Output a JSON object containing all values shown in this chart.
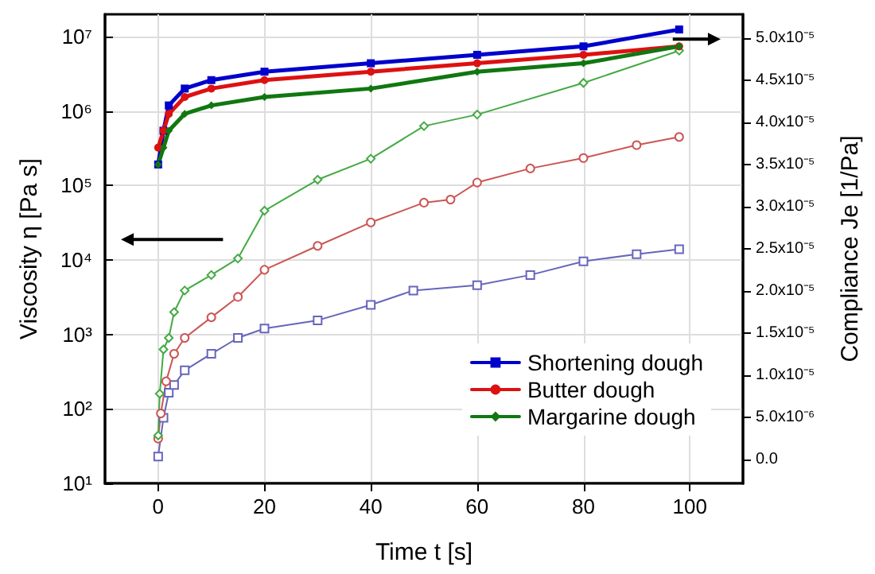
{
  "chart_data": {
    "type": "line",
    "xlabel": "Time t [s]",
    "ylabel": "Viscosity η [Pa s]",
    "y2label": "Compliance Je [1/Pa]",
    "log": "y",
    "grid": true,
    "legend": "bottom right",
    "xlim": [
      -10,
      110
    ],
    "xticks": [
      0,
      20,
      40,
      60,
      80,
      100
    ],
    "ylim": [
      10,
      20000000
    ],
    "yticks": [
      {
        "value": 10,
        "label": "10¹"
      },
      {
        "value": 100,
        "label": "10²"
      },
      {
        "value": 1000,
        "label": "10³"
      },
      {
        "value": 10000,
        "label": "10⁴"
      },
      {
        "value": 100000,
        "label": "10⁵"
      },
      {
        "value": 1000000,
        "label": "10⁶"
      },
      {
        "value": 10000000,
        "label": "10⁷"
      }
    ],
    "y2lim": [
      -2.8e-06,
      5.28e-05
    ],
    "y2ticks": [
      {
        "value": 0,
        "label": "0.0"
      },
      {
        "value": 5e-06,
        "label": "5.0x10⁻⁶"
      },
      {
        "value": 1e-05,
        "label": "1.0x10⁻⁵"
      },
      {
        "value": 1.5e-05,
        "label": "1.5x10⁻⁵"
      },
      {
        "value": 2e-05,
        "label": "2.0x10⁻⁵"
      },
      {
        "value": 2.5e-05,
        "label": "2.5x10⁻⁵"
      },
      {
        "value": 3e-05,
        "label": "3.0x10⁻⁵"
      },
      {
        "value": 3.5e-05,
        "label": "3.5x10⁻⁵"
      },
      {
        "value": 4e-05,
        "label": "4.0x10⁻⁵"
      },
      {
        "value": 4.5e-05,
        "label": "4.5x10⁻⁵"
      },
      {
        "value": 5e-05,
        "label": "5.0x10⁻⁵"
      }
    ],
    "series": [
      {
        "name": "Shortening dough",
        "color": "#0000cc",
        "axis": "y2",
        "marker": "square",
        "x": [
          0,
          1,
          2,
          5,
          10,
          20,
          40,
          60,
          80,
          98
        ],
        "values": [
          3.5e-05,
          3.9e-05,
          4.2e-05,
          4.4e-05,
          4.5e-05,
          4.6e-05,
          4.7e-05,
          4.8e-05,
          4.9e-05,
          5.1e-05
        ]
      },
      {
        "name": "Butter dough",
        "color": "#dd1111",
        "axis": "y2",
        "marker": "circle",
        "x": [
          0,
          1,
          2,
          5,
          10,
          20,
          40,
          60,
          80,
          98
        ],
        "values": [
          3.7e-05,
          3.9e-05,
          4.1e-05,
          4.3e-05,
          4.4e-05,
          4.5e-05,
          4.6e-05,
          4.7e-05,
          4.8e-05,
          4.9e-05
        ]
      },
      {
        "name": "Margarine dough",
        "color": "#117711",
        "axis": "y2",
        "marker": "diamond",
        "x": [
          0,
          1,
          2,
          5,
          10,
          20,
          40,
          60,
          80,
          98
        ],
        "values": [
          3.5e-05,
          3.7e-05,
          3.9e-05,
          4.1e-05,
          4.2e-05,
          4.3e-05,
          4.4e-05,
          4.6e-05,
          4.7e-05,
          4.9e-05
        ]
      },
      {
        "color": "#6666bb",
        "axis": "y",
        "marker": "square",
        "x": [
          0,
          1,
          2,
          3,
          5,
          10,
          15,
          20,
          30,
          40,
          48,
          60,
          70,
          80,
          90,
          98
        ],
        "values": [
          23,
          76,
          165,
          210,
          330,
          550,
          900,
          1200,
          1550,
          2500,
          3900,
          4600,
          6300,
          9600,
          12000,
          14000
        ]
      },
      {
        "color": "#cc5555",
        "axis": "y",
        "marker": "circle",
        "x": [
          0,
          0.5,
          1.5,
          3,
          5,
          10,
          15,
          20,
          30,
          40,
          50,
          55,
          60,
          70,
          80,
          90,
          98
        ],
        "values": [
          40,
          87,
          235,
          550,
          900,
          1700,
          3200,
          7400,
          15500,
          32000,
          59000,
          65000,
          110000,
          170000,
          235000,
          350000,
          450000
        ]
      },
      {
        "color": "#44aa44",
        "axis": "y",
        "marker": "diamond",
        "x": [
          0,
          0.3,
          1,
          2,
          3,
          5,
          10,
          15,
          20,
          30,
          40,
          50,
          60,
          80,
          98
        ],
        "values": [
          44,
          160,
          630,
          900,
          2000,
          3900,
          6300,
          10500,
          46000,
          120000,
          230000,
          630000,
          900000,
          2400000,
          6500000
        ]
      }
    ]
  }
}
